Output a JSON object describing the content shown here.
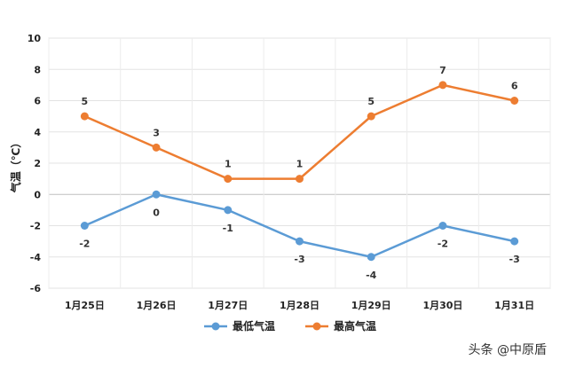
{
  "chart_data": {
    "type": "line",
    "categories": [
      "1月25日",
      "1月26日",
      "1月27日",
      "1月28日",
      "1月29日",
      "1月30日",
      "1月31日"
    ],
    "series": [
      {
        "name": "最低气温",
        "values": [
          -2,
          0,
          -1,
          -3,
          -4,
          -2,
          -3
        ],
        "color": "#5b9bd5"
      },
      {
        "name": "最高气温",
        "values": [
          5,
          3,
          1,
          1,
          5,
          7,
          6
        ],
        "color": "#ed7d31"
      }
    ],
    "ylabel": "气温（℃）",
    "ylim": [
      -6,
      10
    ],
    "yticks": [
      "10",
      "8",
      "6",
      "4",
      "2",
      "0",
      "-2",
      "-4",
      "-6"
    ],
    "grid": true,
    "legend": "bottom"
  },
  "watermark": "头条 @中原盾"
}
